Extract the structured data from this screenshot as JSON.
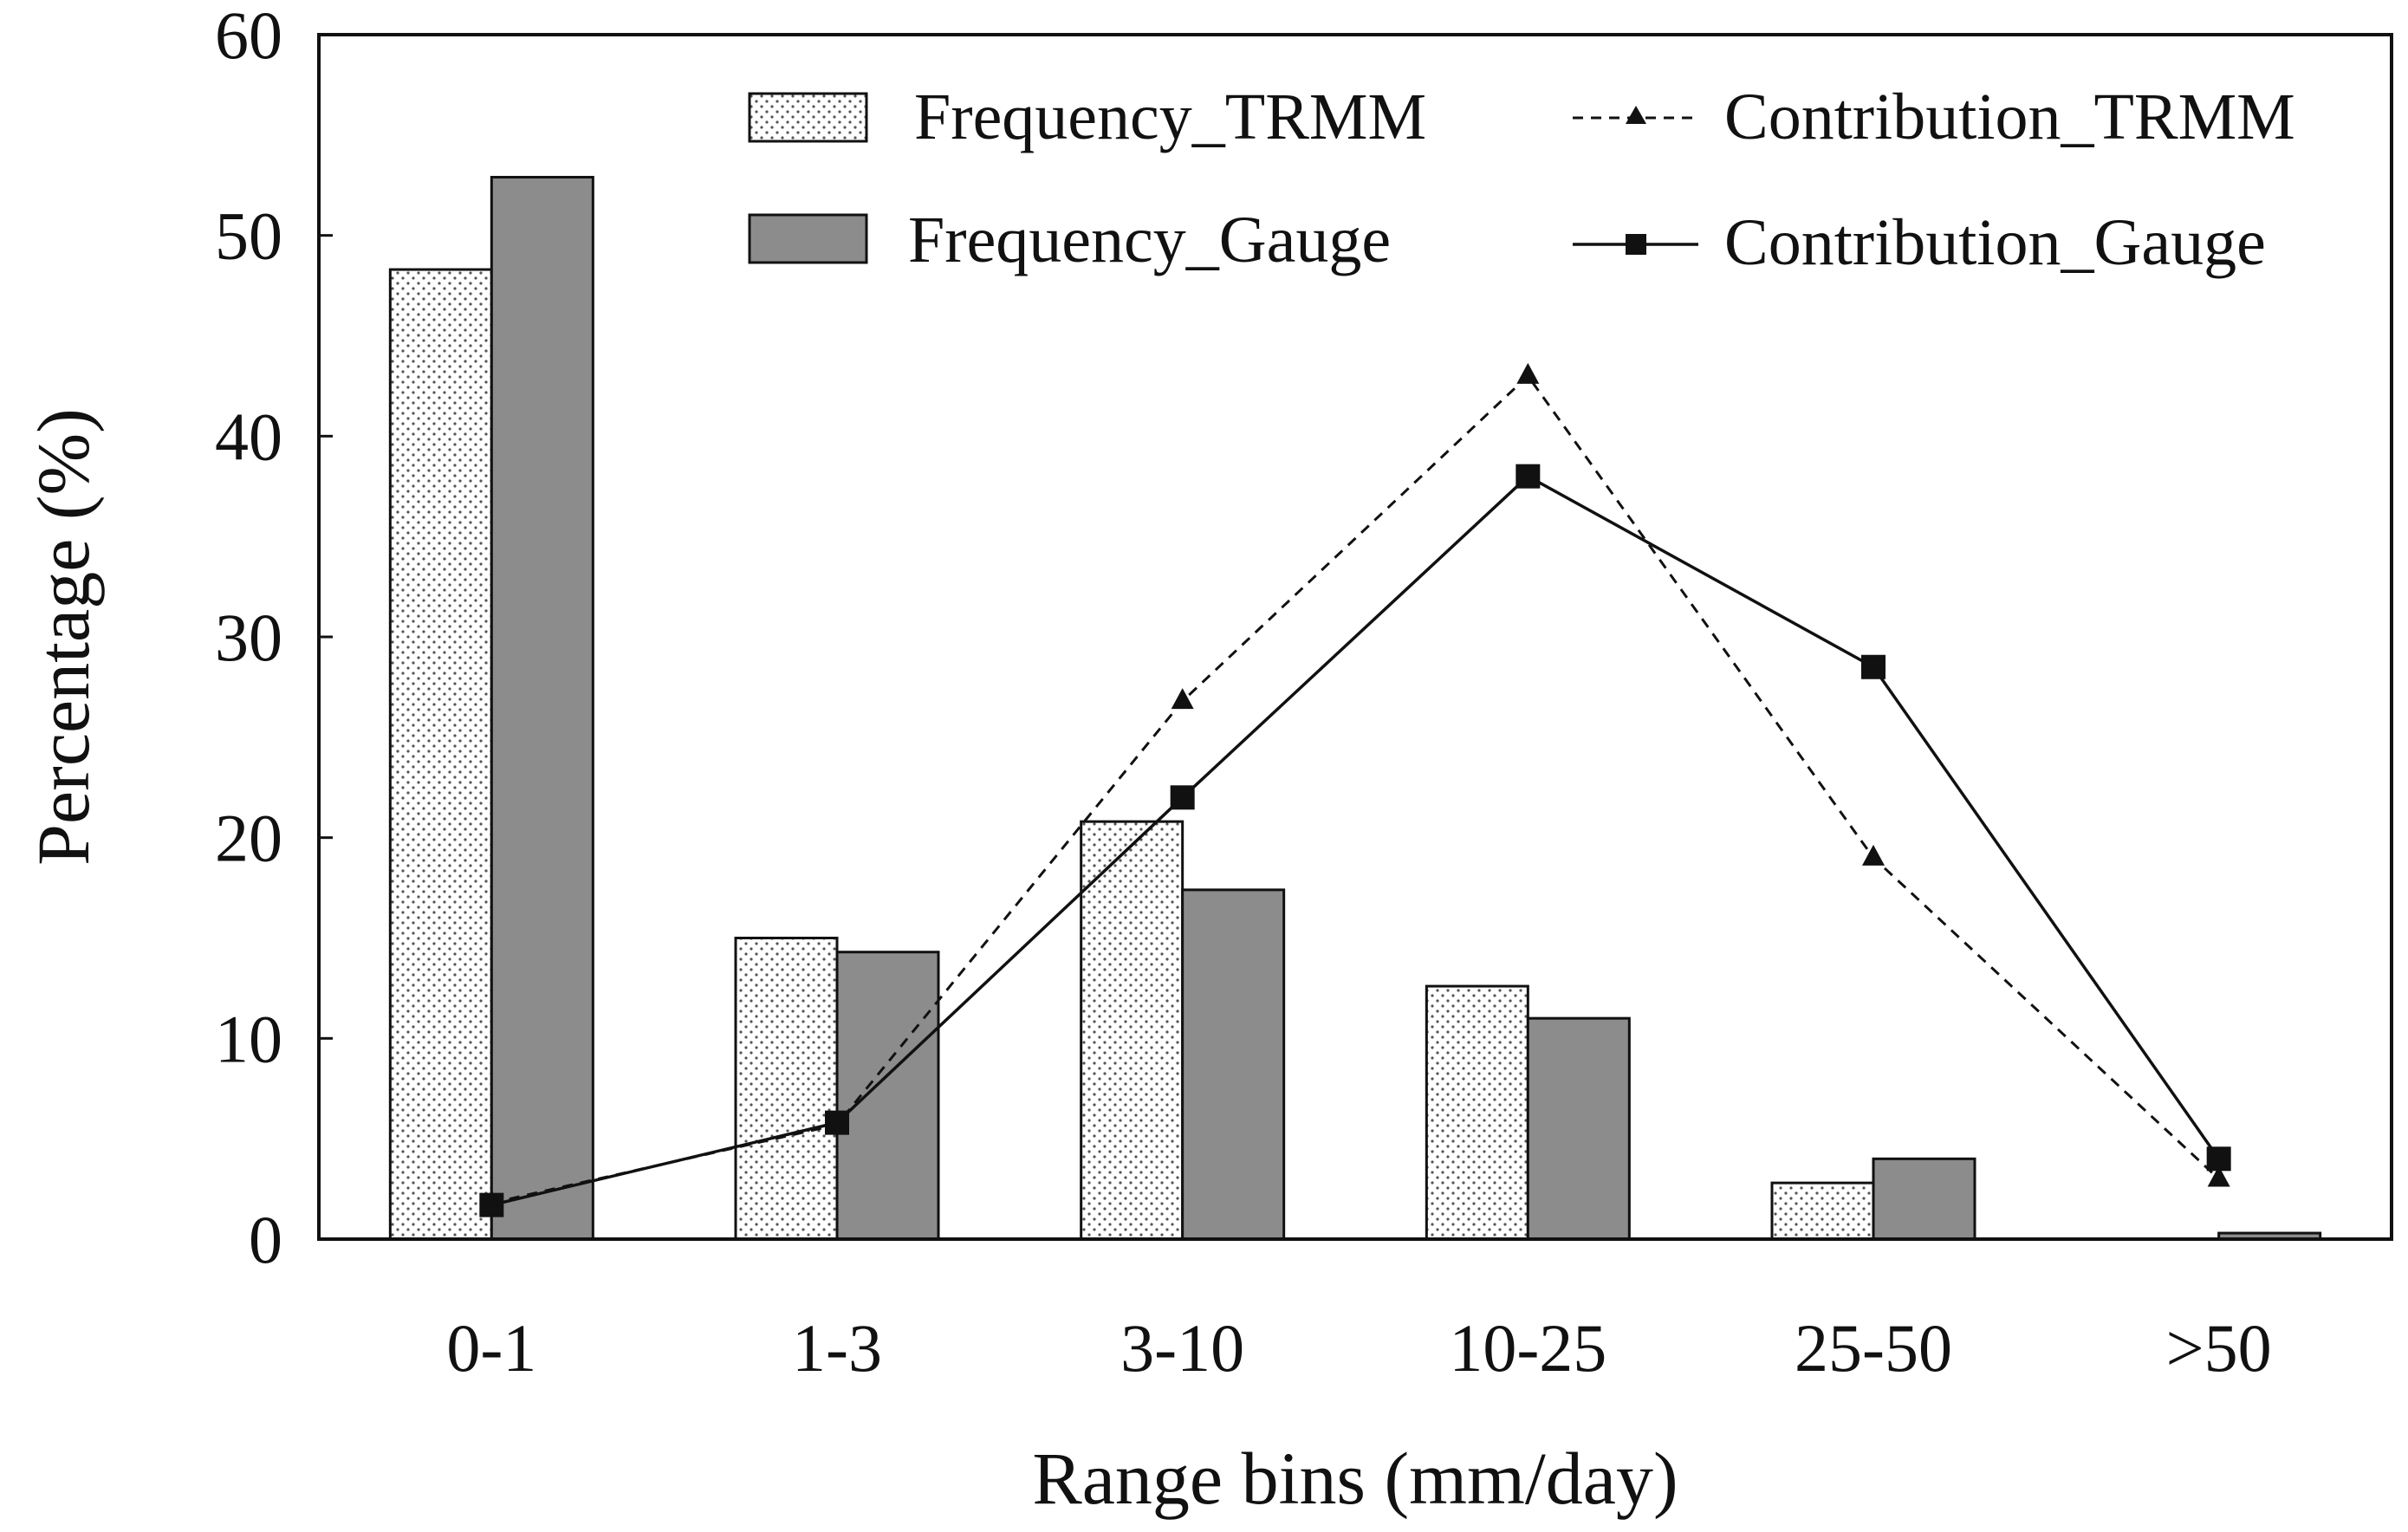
{
  "chart_data": {
    "type": "bar",
    "title": "",
    "xlabel": "Range bins (mm/day)",
    "ylabel": "Percentage (%)",
    "ylim": [
      0,
      60
    ],
    "yticks": [
      "0",
      "10",
      "20",
      "30",
      "40",
      "50",
      "60"
    ],
    "categories": [
      "0-1",
      "1-3",
      "3-10",
      "10-25",
      "25-50",
      ">50"
    ],
    "bar_series": [
      {
        "name": "Frequency_TRMM",
        "values": [
          48.3,
          15.0,
          20.8,
          12.6,
          2.8,
          0.0
        ],
        "fill": "dotted",
        "color": "#ffffff"
      },
      {
        "name": "Frequency_Gauge",
        "values": [
          52.9,
          14.3,
          17.4,
          11.0,
          4.0,
          0.3
        ],
        "fill": "solid",
        "color": "#8c8c8c"
      }
    ],
    "line_series": [
      {
        "name": "Contribution_TRMM",
        "values": [
          1.8,
          5.7,
          26.8,
          43.0,
          19.0,
          3.0
        ],
        "style": "dashed",
        "marker": "triangle",
        "color": "#111111"
      },
      {
        "name": "Contribution_Gauge",
        "values": [
          1.7,
          5.8,
          22.0,
          38.0,
          28.5,
          4.0
        ],
        "style": "solid",
        "marker": "square",
        "color": "#111111"
      }
    ],
    "legend": "top-right"
  }
}
